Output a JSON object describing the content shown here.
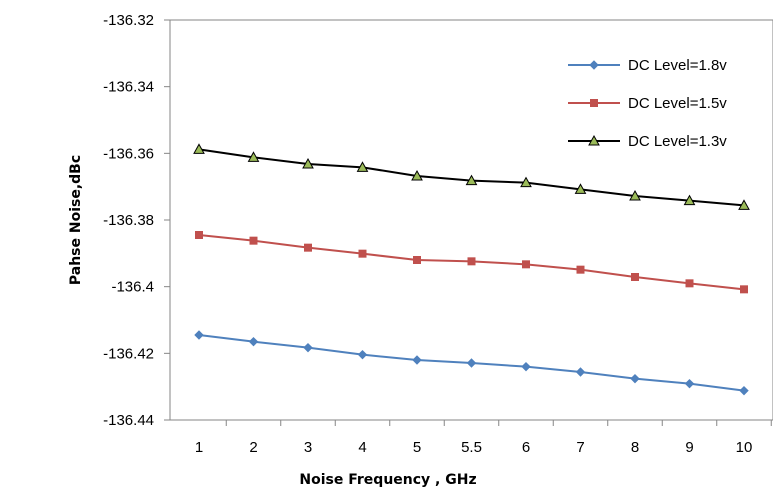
{
  "chart_data": {
    "type": "line",
    "title": "",
    "xlabel": "Noise Frequency , GHz",
    "ylabel": "Pahse Noise,dBc",
    "categories": [
      "1",
      "2",
      "3",
      "4",
      "5",
      "5.5",
      "6",
      "7",
      "8",
      "9",
      "10"
    ],
    "y_tick_labels": [
      "-136.32",
      "-136.34",
      "-136.36",
      "-136.38",
      "-136.4",
      "-136.42",
      "-136.44"
    ],
    "ylim": [
      -136.44,
      -136.32
    ],
    "grid": false,
    "legend_position": "top-right",
    "series": [
      {
        "name": "DC Level=1.8v",
        "color": "#4f81bd",
        "marker": "diamond",
        "values": [
          -136.4145,
          -136.4165,
          -136.4183,
          -136.4204,
          -136.422,
          -136.4229,
          -136.424,
          -136.4256,
          -136.4276,
          -136.4291,
          -136.4312
        ]
      },
      {
        "name": "DC Level=1.5v",
        "color": "#c0504d",
        "marker": "square",
        "values": [
          -136.3845,
          -136.3862,
          -136.3883,
          -136.3901,
          -136.392,
          -136.3924,
          -136.3933,
          -136.3949,
          -136.3971,
          -136.399,
          -136.4008
        ]
      },
      {
        "name": "DC Level=1.3v",
        "color": "#000000",
        "marker": "triangle",
        "marker_fill": "#9bbb59",
        "values": [
          -136.3588,
          -136.3612,
          -136.3632,
          -136.3642,
          -136.3668,
          -136.3682,
          -136.3688,
          -136.3708,
          -136.3728,
          -136.3742,
          -136.3756
        ]
      }
    ]
  }
}
